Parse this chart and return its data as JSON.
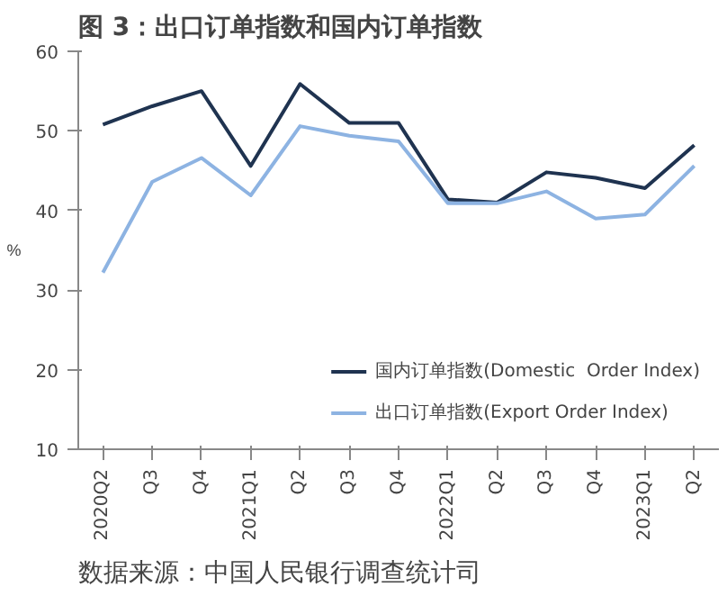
{
  "chart_data": {
    "type": "line",
    "title": "图 3：出口订单指数和国内订单指数",
    "ylabel": "%",
    "categories": [
      "2020Q2",
      "Q3",
      "Q4",
      "2021Q1",
      "Q2",
      "Q3",
      "Q4",
      "2022Q1",
      "Q2",
      "Q3",
      "Q4",
      "2023Q1",
      "Q2"
    ],
    "series": [
      {
        "name": "国内订单指数(Domestic  Order Index)",
        "color": "#1f3350",
        "values": [
          50.8,
          53.1,
          55.0,
          45.6,
          55.9,
          51.0,
          51.0,
          41.4,
          41.0,
          44.8,
          44.1,
          42.8,
          48.2
        ]
      },
      {
        "name": "出口订单指数(Export Order Index)",
        "color": "#8db3e2",
        "values": [
          32.2,
          43.6,
          46.6,
          41.9,
          50.6,
          49.4,
          48.7,
          40.9,
          40.9,
          42.4,
          39.0,
          39.5,
          45.6
        ]
      }
    ],
    "ylim": [
      10,
      60
    ],
    "yticks": [
      10,
      20,
      30,
      40,
      50,
      60
    ],
    "grid": false,
    "legend": "bottom right",
    "marker": "none",
    "line_style": "solid",
    "annotations": [
      "数据来源：中国人民银行调查统计司"
    ]
  }
}
